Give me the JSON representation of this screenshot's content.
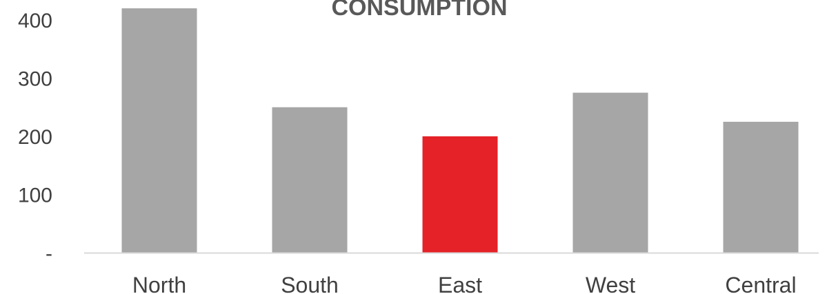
{
  "chart_data": {
    "type": "bar",
    "title": "CONSUMPTION",
    "categories": [
      "North",
      "South",
      "East",
      "West",
      "Central"
    ],
    "values": [
      420,
      250,
      200,
      275,
      225
    ],
    "highlight_category": "East",
    "colors": {
      "bar": "#a6a6a6",
      "highlight": "#e52228",
      "axis": "#d9d9d9"
    },
    "yticks": [
      {
        "value": 0,
        "label": "-"
      },
      {
        "value": 100,
        "label": "100"
      },
      {
        "value": 200,
        "label": "200"
      },
      {
        "value": 300,
        "label": "300"
      },
      {
        "value": 400,
        "label": "400"
      }
    ],
    "ylim": [
      0,
      420
    ],
    "grid": false,
    "legend": "none"
  }
}
